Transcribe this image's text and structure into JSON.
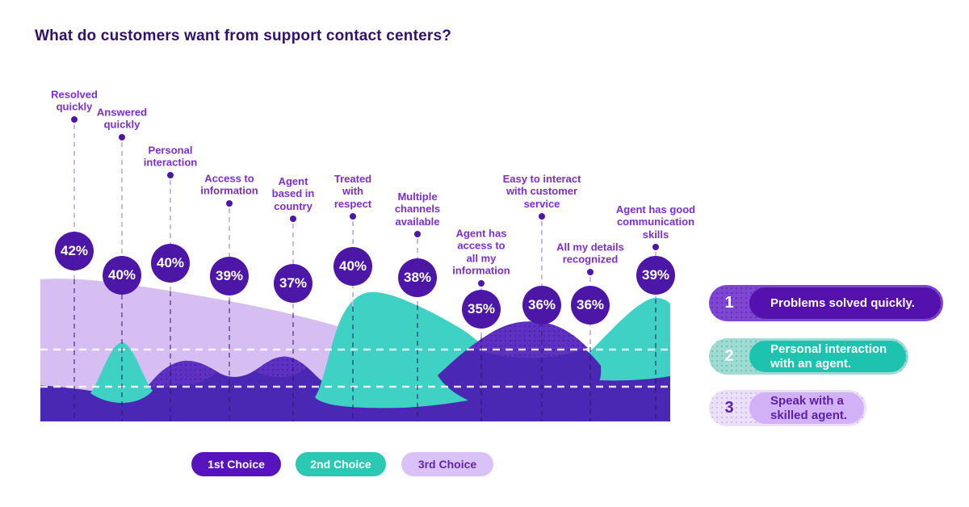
{
  "title": "What do customers want from support contact centers?",
  "chart_data": {
    "type": "area",
    "title": "What do customers want from support contact centers?",
    "categories": [
      "Resolved quickly",
      "Answered quickly",
      "Personal interaction",
      "Access to information",
      "Agent based in country",
      "Treated with respect",
      "Multiple channels available",
      "Agent has access to all my information",
      "Easy to interact with customer service",
      "All my details recognized",
      "Agent has good communication skills"
    ],
    "values": [
      42,
      40,
      40,
      39,
      37,
      40,
      38,
      35,
      36,
      36,
      39
    ],
    "values_unit": "%",
    "legend": [
      "1st Choice",
      "2nd Choice",
      "3rd Choice"
    ],
    "legend_position": "bottom",
    "grid": "two horizontal white dashed reference lines across the area chart",
    "annotations": [
      "Problems solved quickly.",
      "Personal interaction with an agent.",
      "Speak with a skilled agent."
    ]
  },
  "categories": [
    {
      "label": "Resolved\nquickly",
      "pct": "42%"
    },
    {
      "label": "Answered\nquickly",
      "pct": "40%"
    },
    {
      "label": "Personal\ninteraction",
      "pct": "40%"
    },
    {
      "label": "Access to\ninformation",
      "pct": "39%"
    },
    {
      "label": "Agent\nbased in\ncountry",
      "pct": "37%"
    },
    {
      "label": "Treated\nwith\nrespect",
      "pct": "40%"
    },
    {
      "label": "Multiple\nchannels\navailable",
      "pct": "38%"
    },
    {
      "label": "Agent has\naccess to\nall my\ninformation",
      "pct": "35%"
    },
    {
      "label": "Easy to interact\nwith customer\nservice",
      "pct": "36%"
    },
    {
      "label": "All my details\nrecognized",
      "pct": "36%"
    },
    {
      "label": "Agent has good\ncommunication\nskills",
      "pct": "39%"
    }
  ],
  "ranking": [
    {
      "rank": "1",
      "text": "Problems solved quickly."
    },
    {
      "rank": "2",
      "text": "Personal interaction\nwith an agent."
    },
    {
      "rank": "3",
      "text": "Speak with a\nskilled agent."
    }
  ],
  "legend": {
    "items": [
      {
        "label": "1st Choice"
      },
      {
        "label": "2nd Choice"
      },
      {
        "label": "3rd Choice"
      }
    ]
  },
  "colors": {
    "first_choice": "#5713bd",
    "second_choice": "#2bc8b4",
    "third_choice": "#d9c2f8",
    "bubble": "#4c16a6",
    "area_first_purple": "#4a28b4",
    "area_second_teal": "#3ed1c4",
    "area_third_lavender": "#d6bef2",
    "title_text": "#32116e",
    "label_text": "#7c2ed6"
  }
}
